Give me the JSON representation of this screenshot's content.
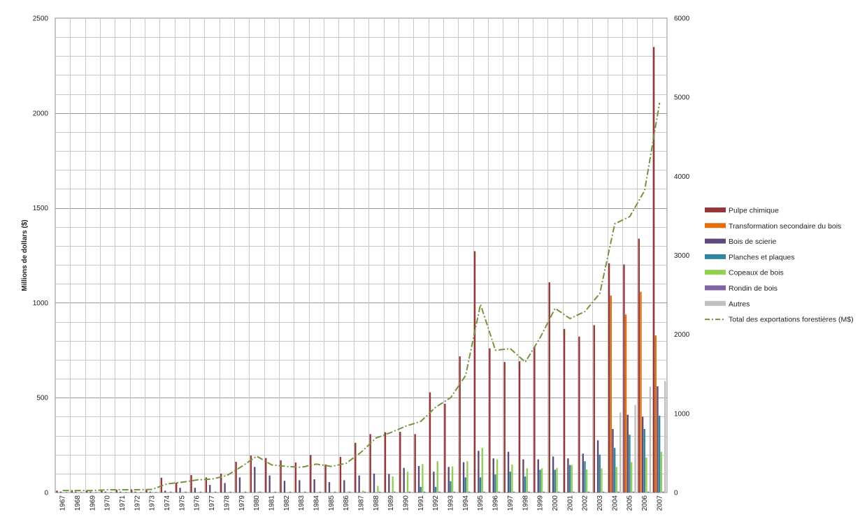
{
  "chart_data": {
    "type": "bar",
    "ylabel": "Millions de dollars ($)",
    "ylim": [
      0,
      2500
    ],
    "y_ticks": [
      0,
      500,
      1000,
      1500,
      2000,
      2500
    ],
    "y2lim": [
      0,
      6000
    ],
    "y2_ticks": [
      0,
      1000,
      2000,
      3000,
      4000,
      5000,
      6000
    ],
    "grid": true,
    "legend_position": "right",
    "categories": [
      "1967",
      "1968",
      "1969",
      "1970",
      "1971",
      "1972",
      "1973",
      "1974",
      "1975",
      "1976",
      "1977",
      "1978",
      "1979",
      "1980",
      "1981",
      "1982",
      "1983",
      "1984",
      "1985",
      "1986",
      "1987",
      "1988",
      "1989",
      "1990",
      "1991",
      "1992",
      "1993",
      "1994",
      "1995",
      "1996",
      "1997",
      "1998",
      "1999",
      "2000",
      "2001",
      "2002",
      "2003",
      "2004",
      "2005",
      "2006",
      "2007"
    ],
    "series": [
      {
        "name": "Pulpe chimique",
        "color": "#953735",
        "values": [
          10,
          12,
          10,
          12,
          14,
          16,
          18,
          78,
          52,
          92,
          80,
          100,
          162,
          195,
          182,
          170,
          158,
          198,
          148,
          188,
          262,
          308,
          318,
          320,
          308,
          528,
          468,
          718,
          1272,
          760,
          688,
          692,
          768,
          1108,
          862,
          822,
          882,
          1208,
          1202,
          1338,
          2348
        ]
      },
      {
        "name": "Transformation secondaire du bois",
        "color": "#e46c0a",
        "values": [
          0,
          0,
          0,
          0,
          0,
          0,
          0,
          0,
          0,
          0,
          0,
          0,
          0,
          0,
          0,
          0,
          0,
          0,
          0,
          0,
          0,
          0,
          0,
          0,
          0,
          0,
          0,
          0,
          0,
          0,
          0,
          0,
          0,
          0,
          0,
          0,
          0,
          1038,
          938,
          1058,
          828
        ]
      },
      {
        "name": "Bois de scierie",
        "color": "#604a7b",
        "values": [
          5,
          5,
          5,
          5,
          5,
          5,
          5,
          10,
          25,
          25,
          40,
          50,
          80,
          135,
          90,
          62,
          65,
          70,
          55,
          65,
          90,
          100,
          98,
          130,
          140,
          110,
          135,
          160,
          220,
          180,
          215,
          175,
          175,
          190,
          180,
          205,
          275,
          335,
          410,
          400,
          560
        ]
      },
      {
        "name": "Planches et plaques",
        "color": "#31859c",
        "values": [
          0,
          0,
          0,
          0,
          0,
          0,
          0,
          0,
          0,
          0,
          0,
          0,
          0,
          0,
          0,
          0,
          0,
          0,
          0,
          0,
          0,
          0,
          0,
          0,
          30,
          30,
          60,
          80,
          80,
          95,
          110,
          85,
          120,
          120,
          145,
          165,
          200,
          235,
          305,
          335,
          405
        ]
      },
      {
        "name": "Copeaux de bois",
        "color": "#92d050",
        "values": [
          2,
          2,
          2,
          2,
          2,
          2,
          2,
          3,
          3,
          3,
          3,
          3,
          3,
          5,
          3,
          3,
          3,
          3,
          3,
          5,
          10,
          35,
          85,
          110,
          150,
          165,
          138,
          165,
          235,
          175,
          148,
          128,
          128,
          130,
          145,
          122,
          128,
          135,
          160,
          185,
          215
        ]
      },
      {
        "name": "Rondin de bois",
        "color": "#8064a2",
        "values": [
          3,
          3,
          3,
          3,
          3,
          3,
          3,
          5,
          5,
          5,
          5,
          5,
          5,
          5,
          5,
          5,
          5,
          5,
          5,
          5,
          5,
          5,
          5,
          5,
          5,
          5,
          5,
          5,
          5,
          5,
          5,
          5,
          5,
          5,
          5,
          5,
          5,
          5,
          5,
          5,
          5
        ]
      },
      {
        "name": "Autres",
        "color": "#bfbfbf",
        "values": [
          0,
          0,
          0,
          0,
          0,
          0,
          0,
          0,
          0,
          0,
          0,
          0,
          0,
          0,
          0,
          0,
          0,
          0,
          0,
          0,
          0,
          0,
          0,
          0,
          0,
          0,
          0,
          0,
          0,
          0,
          0,
          0,
          0,
          0,
          0,
          0,
          0,
          422,
          462,
          558,
          588
        ]
      }
    ],
    "line_series": {
      "name": "Total des exportations forestières (M$)",
      "color": "#77933c",
      "axis": "secondary",
      "values": [
        25,
        25,
        25,
        35,
        35,
        35,
        40,
        110,
        130,
        160,
        170,
        215,
        330,
        460,
        350,
        330,
        320,
        360,
        330,
        370,
        510,
        690,
        760,
        840,
        900,
        1080,
        1200,
        1480,
        2380,
        1800,
        1820,
        1650,
        1960,
        2330,
        2200,
        2290,
        2520,
        3400,
        3490,
        3820,
        4930
      ]
    }
  }
}
